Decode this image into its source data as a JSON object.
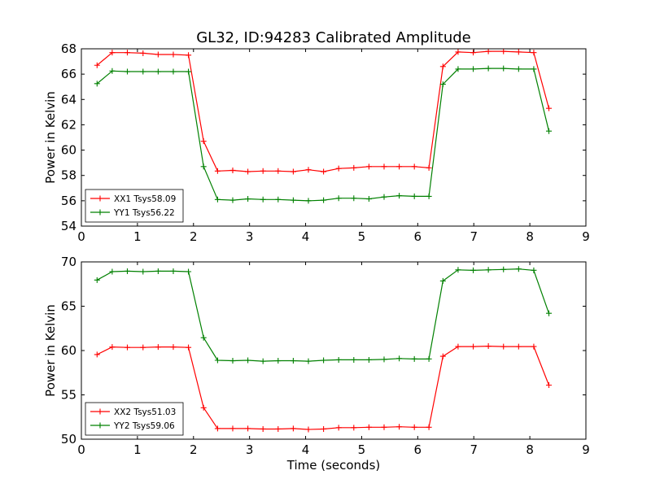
{
  "figure_title": "GL32, ID:94283 Calibrated Amplitude",
  "colors": {
    "series1": "#ff0000",
    "series2": "#008000"
  },
  "chart_data": [
    {
      "type": "line",
      "title": "GL32, ID:94283 Calibrated Amplitude",
      "xlabel": "",
      "ylabel": "Power in Kelvin",
      "xlim": [
        0,
        9
      ],
      "ylim": [
        54,
        68
      ],
      "xticks": [
        "0",
        "1",
        "2",
        "3",
        "4",
        "5",
        "6",
        "7",
        "8",
        "9"
      ],
      "yticks": [
        "54",
        "56",
        "58",
        "60",
        "62",
        "64",
        "66",
        "68"
      ],
      "grid": false,
      "legend_position": "lower-left",
      "marker": "plus",
      "x": [
        0.28,
        0.55,
        0.82,
        1.1,
        1.37,
        1.64,
        1.91,
        2.18,
        2.43,
        2.7,
        2.97,
        3.24,
        3.51,
        3.78,
        4.05,
        4.32,
        4.59,
        4.86,
        5.13,
        5.4,
        5.67,
        5.94,
        6.2,
        6.45,
        6.72,
        6.99,
        7.26,
        7.53,
        7.8,
        8.07,
        8.34
      ],
      "series": [
        {
          "name": "XX1 Tsys58.09",
          "color": "#ff0000",
          "values": [
            66.7,
            67.7,
            67.7,
            67.65,
            67.55,
            67.55,
            67.5,
            60.7,
            58.35,
            58.4,
            58.3,
            58.35,
            58.35,
            58.3,
            58.45,
            58.3,
            58.55,
            58.6,
            58.7,
            58.7,
            58.7,
            58.7,
            58.6,
            66.6,
            67.75,
            67.7,
            67.8,
            67.8,
            67.75,
            67.7,
            63.3
          ]
        },
        {
          "name": "YY1 Tsys56.22",
          "color": "#008000",
          "values": [
            65.25,
            66.25,
            66.2,
            66.2,
            66.2,
            66.2,
            66.2,
            58.7,
            56.1,
            56.05,
            56.15,
            56.1,
            56.1,
            56.05,
            56.0,
            56.05,
            56.2,
            56.2,
            56.15,
            56.3,
            56.4,
            56.35,
            56.35,
            65.2,
            66.4,
            66.4,
            66.45,
            66.45,
            66.4,
            66.4,
            61.5
          ]
        }
      ]
    },
    {
      "type": "line",
      "title": "",
      "xlabel": "Time (seconds)",
      "ylabel": "Power in Kelvin",
      "xlim": [
        0,
        9
      ],
      "ylim": [
        50,
        70
      ],
      "xticks": [
        "0",
        "1",
        "2",
        "3",
        "4",
        "5",
        "6",
        "7",
        "8",
        "9"
      ],
      "yticks": [
        "50",
        "55",
        "60",
        "65",
        "70"
      ],
      "grid": false,
      "legend_position": "lower-left",
      "marker": "plus",
      "x": [
        0.28,
        0.55,
        0.82,
        1.1,
        1.37,
        1.64,
        1.91,
        2.18,
        2.43,
        2.7,
        2.97,
        3.24,
        3.51,
        3.78,
        4.05,
        4.32,
        4.59,
        4.86,
        5.13,
        5.4,
        5.67,
        5.94,
        6.2,
        6.45,
        6.72,
        6.99,
        7.26,
        7.53,
        7.8,
        8.07,
        8.34
      ],
      "series": [
        {
          "name": "XX2 Tsys51.03",
          "color": "#ff0000",
          "values": [
            59.55,
            60.4,
            60.35,
            60.35,
            60.4,
            60.4,
            60.35,
            53.55,
            51.2,
            51.2,
            51.2,
            51.15,
            51.15,
            51.2,
            51.1,
            51.15,
            51.3,
            51.3,
            51.35,
            51.35,
            51.4,
            51.35,
            51.35,
            59.35,
            60.45,
            60.45,
            60.5,
            60.45,
            60.45,
            60.45,
            56.1
          ]
        },
        {
          "name": "YY2 Tsys59.06",
          "color": "#008000",
          "values": [
            67.95,
            68.9,
            68.95,
            68.9,
            68.95,
            68.95,
            68.9,
            61.45,
            58.9,
            58.85,
            58.9,
            58.8,
            58.85,
            58.85,
            58.8,
            58.9,
            58.95,
            58.95,
            58.95,
            59.0,
            59.1,
            59.05,
            59.05,
            67.85,
            69.1,
            69.05,
            69.1,
            69.15,
            69.2,
            69.05,
            64.2
          ]
        }
      ]
    }
  ]
}
